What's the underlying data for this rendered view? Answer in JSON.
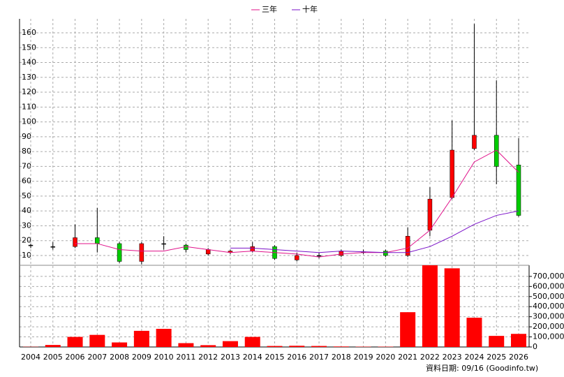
{
  "chart_data": [
    {
      "type": "candlestick",
      "legend": [
        "三年",
        "十年"
      ],
      "categories": [
        "2004",
        "2005",
        "2006",
        "2007",
        "2008",
        "2009",
        "2010",
        "2011",
        "2012",
        "2013",
        "2014",
        "2015",
        "2016",
        "2017",
        "2018",
        "2019",
        "2020",
        "2021",
        "2022",
        "2023",
        "2024",
        "2025",
        "2026"
      ],
      "open": [
        17,
        16,
        16,
        22,
        18,
        6,
        18,
        17,
        11,
        12,
        13,
        16,
        7,
        10,
        10,
        12.5,
        13,
        10,
        27,
        49,
        82,
        91,
        71
      ],
      "high": [
        18,
        19,
        31,
        42,
        19,
        19,
        23,
        18,
        15,
        14,
        19,
        17,
        12,
        12,
        14,
        14,
        14,
        29,
        56,
        101,
        166,
        128,
        89
      ],
      "low": [
        15,
        14,
        15,
        12,
        5,
        4,
        14,
        12,
        10,
        11,
        12,
        7,
        6,
        8,
        9,
        11,
        9,
        9,
        23,
        48,
        81,
        58,
        36
      ],
      "close": [
        17,
        16,
        22,
        18,
        6,
        18,
        18,
        14,
        14,
        13,
        16,
        8,
        10,
        10,
        13,
        12.5,
        10,
        23,
        48,
        81,
        91,
        70,
        37
      ],
      "up_color": "#ff0000",
      "down_color": "#00cc00",
      "series": [
        {
          "name": "三年",
          "color": "#e0108a",
          "values": [
            null,
            null,
            18,
            18,
            14,
            13,
            13,
            16,
            14,
            12,
            13,
            12,
            11,
            9,
            11,
            12,
            12,
            15,
            27,
            49,
            73,
            81,
            66
          ]
        },
        {
          "name": "十年",
          "color": "#7a10c8",
          "values": [
            null,
            null,
            null,
            null,
            null,
            null,
            null,
            null,
            null,
            15,
            15,
            14,
            13,
            12,
            13,
            12.5,
            12,
            12,
            16,
            23,
            31,
            37,
            40
          ]
        }
      ],
      "ylim": [
        3.4,
        169.4
      ],
      "yticks": [
        10,
        20,
        30,
        40,
        50,
        60,
        70,
        80,
        90,
        100,
        110,
        120,
        130,
        140,
        150,
        160
      ],
      "grid": true
    },
    {
      "type": "bar",
      "color": "#ff0000",
      "values": [
        2000,
        20000,
        100000,
        120000,
        45000,
        160000,
        180000,
        38000,
        18000,
        58000,
        100000,
        10000,
        12000,
        10000,
        5000,
        3000,
        3000,
        345000,
        810000,
        780000,
        290000,
        110000,
        130000
      ],
      "ylim": [
        0,
        810000
      ],
      "yticks": [
        0,
        {
          "value": 100000,
          "label": "100,000"
        },
        {
          "value": 200000,
          "label": "200,000"
        },
        {
          "value": 300000,
          "label": "300,000"
        },
        {
          "value": 400000,
          "label": "400,000"
        },
        {
          "value": 500000,
          "label": "500,000"
        },
        {
          "value": 600000,
          "label": "600,000"
        },
        {
          "value": 700000,
          "label": "700,000"
        }
      ],
      "note": "資料日期: 09/16 (Goodinfo.tw)"
    }
  ]
}
